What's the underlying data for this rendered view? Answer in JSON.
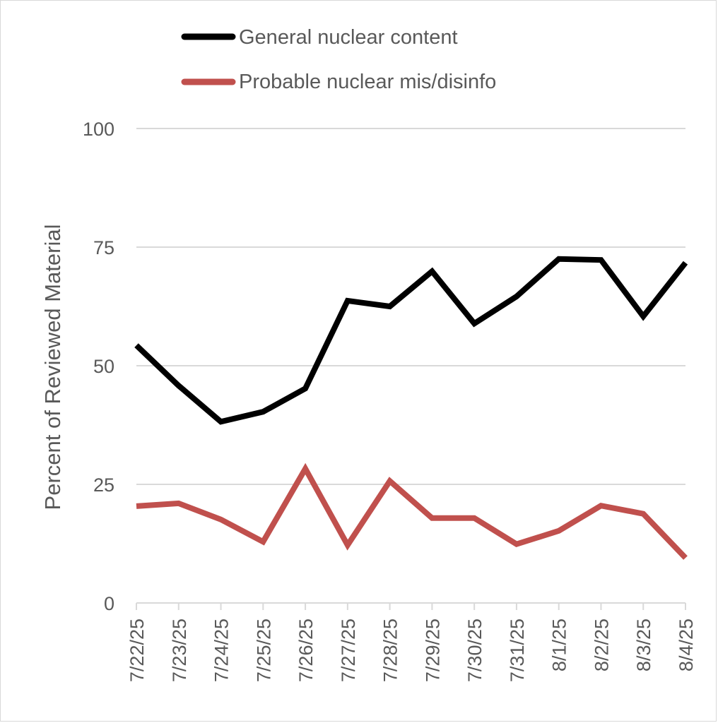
{
  "chart_data": {
    "type": "line",
    "title": "",
    "xlabel": "",
    "ylabel": "Percent of Reviewed Material",
    "ylim": [
      0,
      100
    ],
    "yticks": [
      "0",
      "25",
      "50",
      "75",
      "100"
    ],
    "grid": true,
    "legend_position": "top",
    "categories": [
      "7/22/25",
      "7/23/25",
      "7/24/25",
      "7/25/25",
      "7/26/25",
      "7/27/25",
      "7/28/25",
      "7/29/25",
      "7/30/25",
      "7/31/25",
      "8/1/25",
      "8/2/25",
      "8/3/25",
      "8/4/25"
    ],
    "series": [
      {
        "name": "General nuclear content",
        "color": "#000000",
        "values": [
          54.3,
          45.8,
          38.2,
          40.3,
          45.2,
          63.7,
          62.5,
          69.9,
          58.9,
          64.6,
          72.5,
          72.3,
          60.4,
          71.7
        ]
      },
      {
        "name": "Probable nuclear mis/disinfo",
        "color": "#c0504d",
        "values": [
          20.4,
          21.0,
          17.6,
          12.9,
          28.3,
          12.2,
          25.7,
          17.9,
          17.9,
          12.4,
          15.2,
          20.5,
          18.8,
          9.5
        ]
      }
    ]
  }
}
